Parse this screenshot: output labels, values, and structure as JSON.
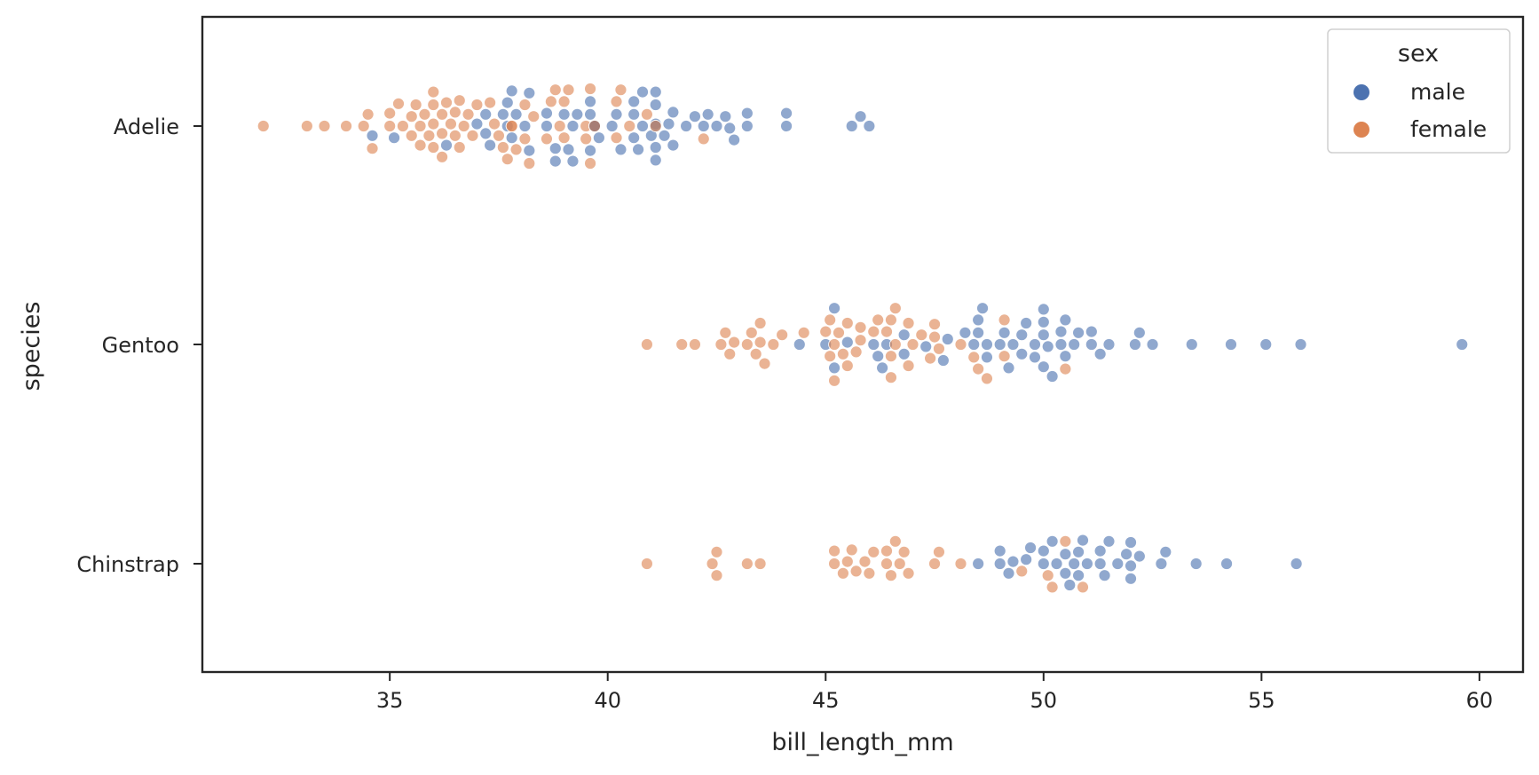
{
  "chart_data": {
    "type": "scatter",
    "subtype": "swarm",
    "xlabel": "bill_length_mm",
    "ylabel": "species",
    "xlim": [
      30.7,
      61.0
    ],
    "x_ticks": [
      35,
      40,
      45,
      50,
      55,
      60
    ],
    "categories": [
      "Adelie",
      "Gentoo",
      "Chinstrap"
    ],
    "grid": false,
    "legend": {
      "title": "sex",
      "placement": "top-right",
      "entries": [
        "male",
        "female"
      ]
    },
    "series": [
      {
        "name": "male",
        "color": "#4c72b0",
        "points": {
          "Adelie": [
            34.6,
            35.1,
            36.3,
            37.0,
            37.2,
            37.2,
            37.3,
            37.6,
            37.7,
            37.7,
            37.8,
            37.8,
            37.9,
            38.1,
            38.2,
            38.2,
            38.6,
            38.6,
            38.8,
            38.8,
            39.0,
            39.1,
            39.2,
            39.2,
            39.3,
            39.6,
            39.6,
            39.6,
            39.7,
            39.7,
            39.7,
            39.7,
            39.8,
            40.1,
            40.2,
            40.3,
            40.6,
            40.6,
            40.6,
            40.7,
            40.8,
            40.8,
            41.0,
            41.1,
            41.1,
            41.1,
            41.1,
            41.1,
            41.1,
            41.3,
            41.4,
            41.5,
            41.5,
            41.8,
            42.0,
            42.2,
            42.3,
            42.5,
            42.7,
            42.8,
            42.9,
            43.2,
            43.2,
            44.1,
            44.1,
            45.6,
            45.8,
            46.0
          ],
          "Gentoo": [
            44.4,
            45.0,
            45.2,
            45.2,
            45.5,
            46.1,
            46.2,
            46.3,
            46.4,
            46.8,
            46.8,
            47.3,
            47.7,
            47.8,
            48.2,
            48.4,
            48.5,
            48.5,
            48.6,
            48.7,
            48.7,
            49.0,
            49.1,
            49.2,
            49.3,
            49.5,
            49.5,
            49.6,
            49.8,
            49.8,
            50.0,
            50.0,
            50.0,
            50.0,
            50.1,
            50.2,
            50.4,
            50.4,
            50.5,
            50.5,
            50.7,
            50.8,
            51.1,
            51.1,
            51.3,
            51.5,
            52.1,
            52.2,
            52.5,
            53.4,
            54.3,
            55.1,
            55.9,
            59.6
          ],
          "Chinstrap": [
            48.5,
            49.0,
            49.0,
            49.2,
            49.3,
            49.6,
            49.7,
            50.0,
            50.0,
            50.2,
            50.3,
            50.5,
            50.5,
            50.6,
            50.7,
            50.8,
            50.8,
            50.9,
            51.0,
            51.3,
            51.3,
            51.4,
            51.5,
            51.7,
            51.9,
            52.0,
            52.0,
            52.0,
            52.2,
            52.7,
            52.8,
            53.5,
            54.2,
            55.8
          ]
        }
      },
      {
        "name": "female",
        "color": "#dd8452",
        "points": {
          "Adelie": [
            32.1,
            33.1,
            33.5,
            34.0,
            34.4,
            34.5,
            34.6,
            35.0,
            35.0,
            35.2,
            35.3,
            35.5,
            35.5,
            35.6,
            35.7,
            35.7,
            35.8,
            35.9,
            36.0,
            36.0,
            36.0,
            36.0,
            36.2,
            36.2,
            36.2,
            36.3,
            36.4,
            36.5,
            36.5,
            36.6,
            36.6,
            36.7,
            36.8,
            36.9,
            37.0,
            37.3,
            37.4,
            37.5,
            37.6,
            37.7,
            37.8,
            37.8,
            37.9,
            38.1,
            38.1,
            38.2,
            38.3,
            38.6,
            38.7,
            38.8,
            38.9,
            39.0,
            39.0,
            39.1,
            39.5,
            39.5,
            39.6,
            39.6,
            39.7,
            40.2,
            40.2,
            40.3,
            40.5,
            40.9,
            41.1,
            42.2
          ],
          "Gentoo": [
            40.9,
            41.7,
            42.0,
            42.6,
            42.7,
            42.8,
            42.9,
            43.2,
            43.3,
            43.4,
            43.5,
            43.5,
            43.6,
            43.8,
            44.0,
            44.5,
            45.0,
            45.1,
            45.1,
            45.2,
            45.2,
            45.3,
            45.4,
            45.5,
            45.5,
            45.7,
            45.8,
            45.8,
            46.1,
            46.2,
            46.4,
            46.5,
            46.5,
            46.5,
            46.6,
            46.6,
            46.9,
            46.9,
            47.0,
            47.2,
            47.4,
            47.5,
            47.5,
            47.6,
            48.1,
            48.4,
            48.5,
            48.7,
            49.1,
            49.1,
            50.5
          ],
          "Chinstrap": [
            40.9,
            42.4,
            42.5,
            42.5,
            43.2,
            43.5,
            45.2,
            45.2,
            45.4,
            45.5,
            45.6,
            45.7,
            45.9,
            46.0,
            46.1,
            46.4,
            46.4,
            46.5,
            46.6,
            46.7,
            46.8,
            46.9,
            47.5,
            47.6,
            48.1,
            49.5,
            50.1,
            50.2,
            50.5,
            50.9
          ]
        }
      }
    ]
  }
}
